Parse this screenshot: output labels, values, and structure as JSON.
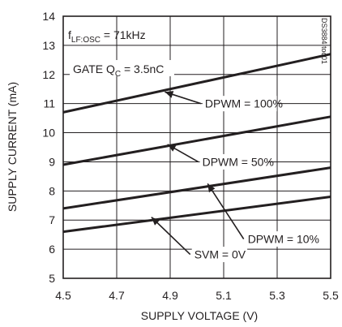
{
  "chart_data": {
    "type": "line",
    "xlabel": "SUPPLY VOLTAGE (V)",
    "ylabel": "SUPPLY CURRENT (mA)",
    "xlim": [
      4.5,
      5.5
    ],
    "ylim": [
      5,
      14
    ],
    "xticks": [
      "4.5",
      "4.7",
      "4.9",
      "5.1",
      "5.3",
      "5.5"
    ],
    "yticks": [
      "5",
      "6",
      "7",
      "8",
      "9",
      "10",
      "11",
      "12",
      "13",
      "14"
    ],
    "grid": true,
    "code": "DS3884 toc01",
    "conditions": {
      "freq_label": "f",
      "freq_sub": "LF:OSC",
      "freq_value": " = 71kHz",
      "gate_label": "GATE Q",
      "gate_sub": "C",
      "gate_value": " = 3.5nC"
    },
    "series": [
      {
        "name": "DPWM = 100%",
        "x": [
          4.5,
          5.5
        ],
        "y": [
          10.7,
          12.7
        ]
      },
      {
        "name": "DPWM = 50%",
        "x": [
          4.5,
          5.5
        ],
        "y": [
          8.9,
          10.55
        ]
      },
      {
        "name": "DPWM = 10%",
        "x": [
          4.5,
          5.5
        ],
        "y": [
          7.4,
          8.8
        ]
      },
      {
        "name": "SVM = 0V",
        "x": [
          4.5,
          5.5
        ],
        "y": [
          6.6,
          7.8
        ]
      }
    ],
    "annotations": [
      {
        "text": "DPWM = 100%",
        "tip_x": 4.88,
        "tip_y": 11.4,
        "label_x": 5.03,
        "label_y": 11.0
      },
      {
        "text": "DPWM = 50%",
        "tip_x": 4.89,
        "tip_y": 9.6,
        "label_x": 5.02,
        "label_y": 9.0
      },
      {
        "text": "DPWM = 10%",
        "tip_x": 5.04,
        "tip_y": 8.25,
        "label_x": 5.19,
        "label_y": 6.35
      },
      {
        "text": "SVM = 0V",
        "tip_x": 4.83,
        "tip_y": 7.1,
        "label_x": 4.99,
        "label_y": 5.82
      }
    ]
  }
}
